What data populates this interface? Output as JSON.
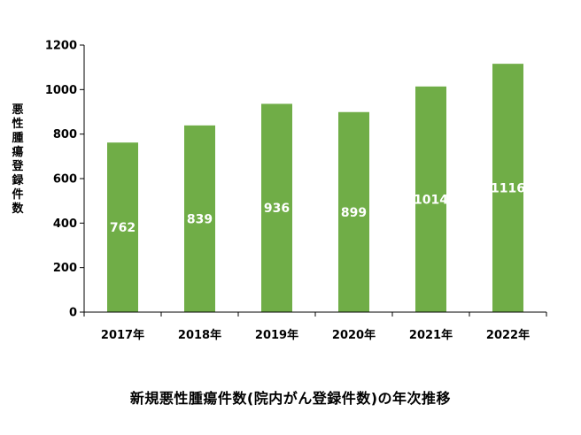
{
  "caption": "新規悪性腫瘍件数(院内がん登録件数)の年次推移",
  "colors": {
    "bar": "#70AD47",
    "axis": "#000000",
    "label": "#ffffff"
  },
  "chart_data": {
    "type": "bar",
    "categories": [
      "2017年",
      "2018年",
      "2019年",
      "2020年",
      "2021年",
      "2022年"
    ],
    "values": [
      762,
      839,
      936,
      899,
      1014,
      1116
    ],
    "data_labels": [
      "762",
      "839",
      "936",
      "899",
      "1014",
      "1116"
    ],
    "title": "",
    "xlabel": "",
    "ylabel": "悪性腫瘍登録件数",
    "ylim": [
      0,
      1200
    ],
    "yticks": [
      0,
      200,
      400,
      600,
      800,
      1000,
      1200
    ],
    "ytick_labels": [
      "0",
      "200",
      "400",
      "600",
      "800",
      "1000",
      "1200"
    ],
    "grid": false,
    "legend": "none"
  }
}
